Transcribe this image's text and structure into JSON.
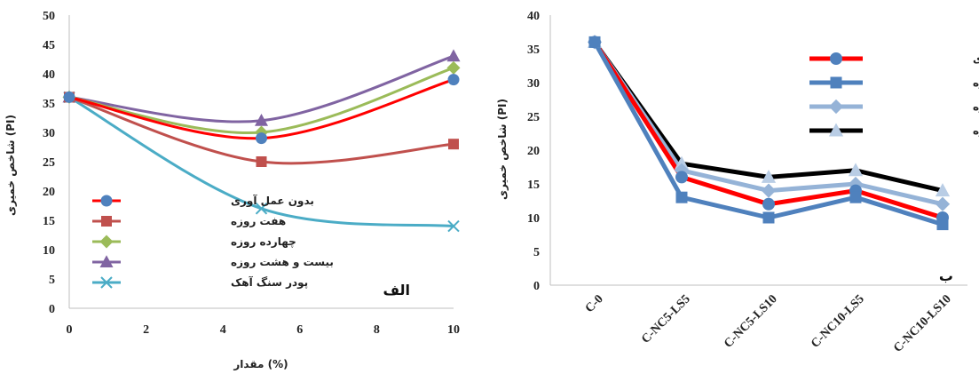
{
  "chart_data": [
    {
      "type": "line",
      "smooth": true,
      "xlabel": "مقدار (%)",
      "ylabel": "شاخص خمیری (PI)",
      "panel_label": "الف",
      "xlim": [
        0,
        10
      ],
      "ylim": [
        0,
        50
      ],
      "xticks": [
        0,
        2,
        4,
        6,
        8,
        10
      ],
      "yticks": [
        0,
        5,
        10,
        15,
        20,
        25,
        30,
        35,
        40,
        45,
        50
      ],
      "legend_position": "bottom-left",
      "x": [
        0,
        5,
        10
      ],
      "series": [
        {
          "name": "بدون عمل آوری",
          "values": [
            36,
            29,
            39
          ],
          "color": "#ff0000",
          "marker": "circle",
          "marker_color": "#4f81bd"
        },
        {
          "name": "هفت روزه",
          "values": [
            36,
            25,
            28
          ],
          "color": "#c0504d",
          "marker": "square",
          "marker_color": "#c0504d"
        },
        {
          "name": "چهارده روزه",
          "values": [
            36,
            30,
            41
          ],
          "color": "#9bbb59",
          "marker": "diamond",
          "marker_color": "#9bbb59"
        },
        {
          "name": "بیست و هشت روزه",
          "values": [
            36,
            32,
            43
          ],
          "color": "#8064a2",
          "marker": "triangle",
          "marker_color": "#8064a2"
        },
        {
          "name": "پودر سنگ آهک",
          "values": [
            36,
            17,
            14
          ],
          "color": "#4bacc6",
          "marker": "x",
          "marker_color": "#4bacc6"
        }
      ]
    },
    {
      "type": "line",
      "smooth": false,
      "xlabel": "",
      "ylabel": "شاخص خمیری (PI)",
      "panel_label": "ب",
      "ylim": [
        0,
        40
      ],
      "yticks": [
        0,
        5,
        10,
        15,
        20,
        25,
        30,
        35,
        40
      ],
      "legend_position": "top-right",
      "categories": [
        "C-0",
        "C-NC5-LS5",
        "C-NC5-LS10",
        "C-NC10-LS5",
        "C-NC10-LS10"
      ],
      "series": [
        {
          "name": "بدون عمل آوری",
          "values": [
            36,
            16,
            12,
            14,
            10
          ],
          "color": "#ff0000",
          "marker": "circle",
          "marker_color": "#4f81bd"
        },
        {
          "name": "هفت روزه",
          "values": [
            36,
            13,
            10,
            13,
            9
          ],
          "color": "#4f81bd",
          "marker": "square",
          "marker_color": "#4f81bd"
        },
        {
          "name": "چهارده روزه",
          "values": [
            36,
            17,
            14,
            15,
            12
          ],
          "color": "#95b3d7",
          "marker": "diamond",
          "marker_color": "#95b3d7"
        },
        {
          "name": "بیست و هشت روزه",
          "values": [
            36,
            18,
            16,
            17,
            14
          ],
          "color": "#000000",
          "marker": "triangle",
          "marker_color": "#b9cde5"
        }
      ]
    }
  ]
}
